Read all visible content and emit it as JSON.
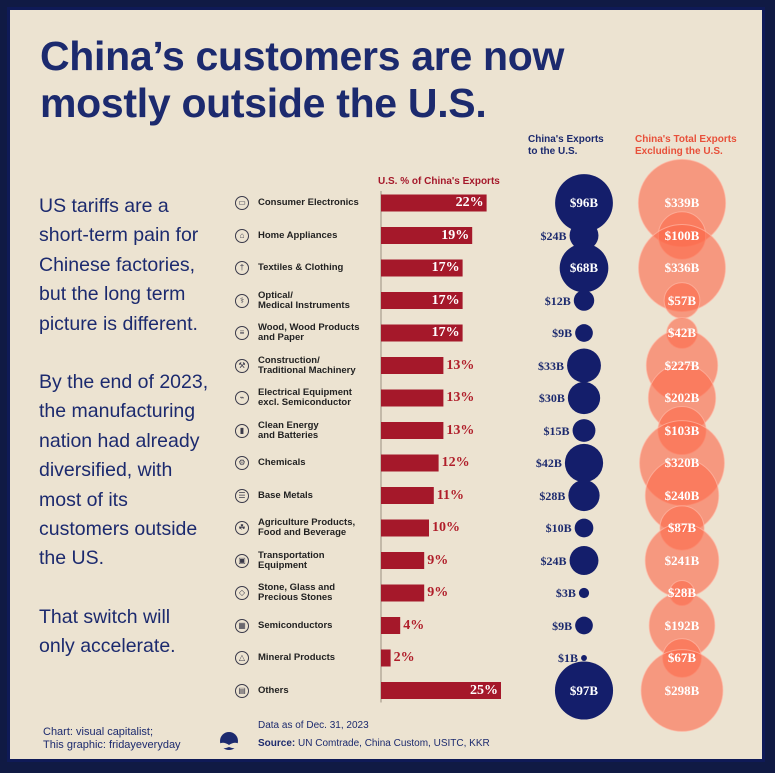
{
  "title_lines": [
    "China’s customers are now",
    "mostly outside the U.S."
  ],
  "sidebar": {
    "paragraph1_lines": [
      "US tariffs are a",
      "short-term pain for",
      "Chinese factories,",
      "but the long term",
      "picture is different."
    ],
    "paragraph2_lines": [
      "By the end of 2023,",
      "the manufacturing",
      "nation had already",
      "diversified, with",
      "most of its",
      "customers outside",
      "the US."
    ],
    "paragraph3_lines": [
      "That switch will",
      "only accelerate."
    ]
  },
  "headers": {
    "bar_header": "U.S. % of China's Exports",
    "us_header_lines": [
      "China's Exports",
      "to the U.S."
    ],
    "ex_header_lines": [
      "China's Total Exports",
      "Excluding the U.S."
    ]
  },
  "colors": {
    "navy": "#141e6b",
    "bar_red": "#a5182a",
    "orange": "#fb6a4c",
    "text_navy": "#1c2a6e"
  },
  "chart_data": {
    "type": "bar",
    "units": {
      "share": "%",
      "exports": "$ billions"
    },
    "rows": [
      {
        "category": "Consumer Electronics",
        "label_lines": [
          "Consumer Electronics"
        ],
        "icon": "tv-icon",
        "glyph": "▭",
        "share": 22,
        "share_label": "22%",
        "us_exports": 96,
        "us_label": "$96B",
        "ex_exports": 339,
        "ex_label": "$339B"
      },
      {
        "category": "Home Appliances",
        "label_lines": [
          "Home Appliances"
        ],
        "icon": "appliance-icon",
        "glyph": "⌂",
        "share": 19,
        "share_label": "19%",
        "us_exports": 24,
        "us_label": "$24B",
        "ex_exports": 100,
        "ex_label": "$100B"
      },
      {
        "category": "Textiles & Clothing",
        "label_lines": [
          "Textiles & Clothing"
        ],
        "icon": "shirt-icon",
        "glyph": "†",
        "share": 17,
        "share_label": "17%",
        "us_exports": 68,
        "us_label": "$68B",
        "ex_exports": 336,
        "ex_label": "$336B"
      },
      {
        "category": "Optical/ Medical Instruments",
        "label_lines": [
          "Optical/",
          "Medical Instruments"
        ],
        "icon": "microscope-icon",
        "glyph": "⚕",
        "share": 17,
        "share_label": "17%",
        "us_exports": 12,
        "us_label": "$12B",
        "ex_exports": 57,
        "ex_label": "$57B"
      },
      {
        "category": "Wood, Wood Products and Paper",
        "label_lines": [
          "Wood, Wood Products",
          "and Paper"
        ],
        "icon": "wood-icon",
        "glyph": "≡",
        "share": 17,
        "share_label": "17%",
        "us_exports": 9,
        "us_label": "$9B",
        "ex_exports": 42,
        "ex_label": "$42B"
      },
      {
        "category": "Construction/ Traditional Machinery",
        "label_lines": [
          "Construction/",
          "Traditional Machinery"
        ],
        "icon": "crane-icon",
        "glyph": "⚒",
        "share": 13,
        "share_label": "13%",
        "us_exports": 33,
        "us_label": "$33B",
        "ex_exports": 227,
        "ex_label": "$227B"
      },
      {
        "category": "Electrical Equipment excl. Semiconductor",
        "label_lines": [
          "Electrical Equipment",
          "excl. Semiconductor"
        ],
        "icon": "electrical-icon",
        "glyph": "⌁",
        "share": 13,
        "share_label": "13%",
        "us_exports": 30,
        "us_label": "$30B",
        "ex_exports": 202,
        "ex_label": "$202B"
      },
      {
        "category": "Clean Energy and Batteries",
        "label_lines": [
          "Clean Energy",
          "and Batteries"
        ],
        "icon": "battery-icon",
        "glyph": "▮",
        "share": 13,
        "share_label": "13%",
        "us_exports": 15,
        "us_label": "$15B",
        "ex_exports": 103,
        "ex_label": "$103B"
      },
      {
        "category": "Chemicals",
        "label_lines": [
          "Chemicals"
        ],
        "icon": "gear-icon",
        "glyph": "⚙",
        "share": 12,
        "share_label": "12%",
        "us_exports": 42,
        "us_label": "$42B",
        "ex_exports": 320,
        "ex_label": "$320B"
      },
      {
        "category": "Base Metals",
        "label_lines": [
          "Base Metals"
        ],
        "icon": "metal-bars-icon",
        "glyph": "☰",
        "share": 11,
        "share_label": "11%",
        "us_exports": 28,
        "us_label": "$28B",
        "ex_exports": 240,
        "ex_label": "$240B"
      },
      {
        "category": "Agriculture Products, Food and Beverage",
        "label_lines": [
          "Agriculture Products,",
          "Food and Beverage"
        ],
        "icon": "food-icon",
        "glyph": "☘",
        "share": 10,
        "share_label": "10%",
        "us_exports": 10,
        "us_label": "$10B",
        "ex_exports": 87,
        "ex_label": "$87B"
      },
      {
        "category": "Transportation Equipment",
        "label_lines": [
          "Transportation",
          "Equipment"
        ],
        "icon": "vehicle-icon",
        "glyph": "▣",
        "share": 9,
        "share_label": "9%",
        "us_exports": 24,
        "us_label": "$24B",
        "ex_exports": 241,
        "ex_label": "$241B"
      },
      {
        "category": "Stone, Glass and Precious Stones",
        "label_lines": [
          "Stone, Glass and",
          "Precious Stones"
        ],
        "icon": "gem-icon",
        "glyph": "◇",
        "share": 9,
        "share_label": "9%",
        "us_exports": 3,
        "us_label": "$3B",
        "ex_exports": 28,
        "ex_label": "$28B"
      },
      {
        "category": "Semiconductors",
        "label_lines": [
          "Semiconductors"
        ],
        "icon": "chip-icon",
        "glyph": "▦",
        "share": 4,
        "share_label": "4%",
        "us_exports": 9,
        "us_label": "$9B",
        "ex_exports": 192,
        "ex_label": "$192B"
      },
      {
        "category": "Mineral Products",
        "label_lines": [
          "Mineral Products"
        ],
        "icon": "mineral-icon",
        "glyph": "△",
        "share": 2,
        "share_label": "2%",
        "us_exports": 1,
        "us_label": "$1B",
        "ex_exports": 67,
        "ex_label": "$67B"
      },
      {
        "category": "Others",
        "label_lines": [
          "Others"
        ],
        "icon": "box-icon",
        "glyph": "▤",
        "share": 25,
        "share_label": "25%",
        "us_exports": 97,
        "us_label": "$97B",
        "ex_exports": 298,
        "ex_label": "$298B"
      }
    ]
  },
  "footer": {
    "chart_credit": "Chart: visual capitalist;",
    "graphic_credit": "This graphic: fridayeveryday",
    "data_date": "Data as of Dec. 31, 2023",
    "source_label": "Source:",
    "source_text": " UN Comtrade, China Custom, USITC, KKR"
  }
}
